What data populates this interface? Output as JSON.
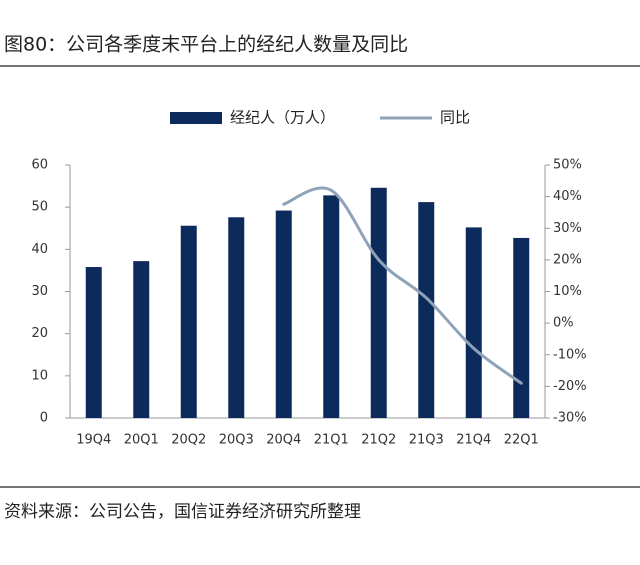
{
  "chart_data": {
    "type": "bar",
    "title": "图80：公司各季度末平台上的经纪人数量及同比",
    "source": "资料来源：公司公告，国信证券经济研究所整理",
    "categories": [
      "19Q4",
      "20Q1",
      "20Q2",
      "20Q3",
      "20Q4",
      "21Q1",
      "21Q2",
      "21Q3",
      "21Q4",
      "22Q1"
    ],
    "series": [
      {
        "name": "经纪人（万人）",
        "color": "#0d2a5c",
        "type": "bar",
        "values": [
          35.8,
          37.2,
          45.6,
          47.6,
          49.2,
          52.8,
          54.6,
          51.2,
          45.2,
          42.7
        ]
      },
      {
        "name": "同比",
        "color": "#8fa3b8",
        "type": "line",
        "axis": "y2",
        "values": [
          null,
          null,
          null,
          null,
          37.6,
          42,
          20,
          8,
          -8,
          -19
        ]
      }
    ],
    "ylim": [
      0,
      60
    ],
    "yticks": [
      0,
      10,
      20,
      30,
      40,
      50,
      60
    ],
    "y2lim": [
      -30,
      50
    ],
    "y2ticks": [
      {
        "value": 50,
        "label": "50%"
      },
      {
        "value": 40,
        "label": "40%"
      },
      {
        "value": 30,
        "label": "30%"
      },
      {
        "value": 20,
        "label": "20%"
      },
      {
        "value": 10,
        "label": "10%"
      },
      {
        "value": 0,
        "label": "0%"
      },
      {
        "value": -10,
        "label": "-10%"
      },
      {
        "value": -20,
        "label": "-20%"
      },
      {
        "value": -30,
        "label": "-30%"
      }
    ]
  }
}
